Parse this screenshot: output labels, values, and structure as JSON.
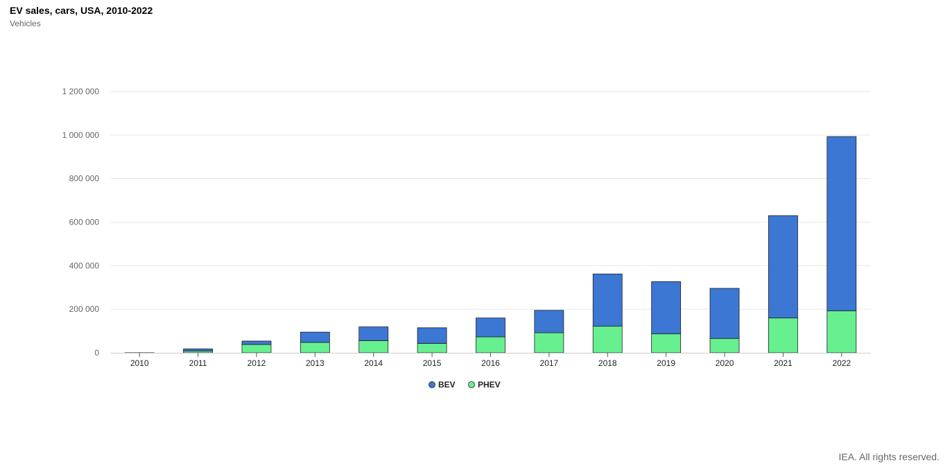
{
  "header": {
    "title": "EV sales, cars, USA, 2010-2022",
    "subtitle": "Vehicles"
  },
  "footer": {
    "credit": "IEA. All rights reserved."
  },
  "chart_data": {
    "type": "bar",
    "stacked": true,
    "title": "EV sales, cars, USA, 2010-2022",
    "subtitle": "Vehicles",
    "categories": [
      "2010",
      "2011",
      "2012",
      "2013",
      "2014",
      "2015",
      "2016",
      "2017",
      "2018",
      "2019",
      "2020",
      "2021",
      "2022"
    ],
    "series": [
      {
        "name": "PHEV",
        "color": "#67f08f",
        "values": [
          300,
          8000,
          38000,
          48000,
          56000,
          43000,
          73000,
          92000,
          122000,
          87000,
          66000,
          160000,
          193000
        ]
      },
      {
        "name": "BEV",
        "color": "#3c77d4",
        "values": [
          100,
          10000,
          16000,
          47000,
          63000,
          72000,
          87000,
          103000,
          240000,
          240000,
          230000,
          470000,
          800000
        ]
      }
    ],
    "yticks": [
      0,
      200000,
      400000,
      600000,
      800000,
      1000000,
      1200000
    ],
    "ytick_labels": [
      "0",
      "200 000",
      "400 000",
      "600 000",
      "800 000",
      "1 000 000",
      "1 200 000"
    ],
    "ylim": [
      0,
      1200000
    ],
    "grid": true,
    "legend": {
      "position": "bottom-center",
      "order": [
        "BEV",
        "PHEV"
      ]
    }
  }
}
